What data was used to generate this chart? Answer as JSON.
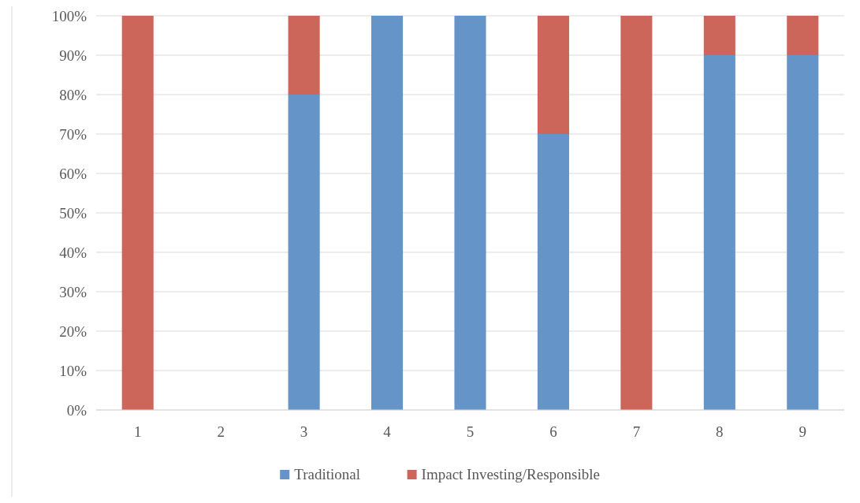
{
  "chart_data": {
    "type": "bar",
    "stacked": true,
    "categories": [
      "1",
      "2",
      "3",
      "4",
      "5",
      "6",
      "7",
      "8",
      "9"
    ],
    "series": [
      {
        "name": "Traditional",
        "color": "#6594c8",
        "values": [
          0,
          0,
          80,
          100,
          100,
          70,
          0,
          90,
          90
        ]
      },
      {
        "name": "Impact Investing/Responsible",
        "color": "#cd665a",
        "values": [
          100,
          0,
          20,
          0,
          0,
          30,
          100,
          10,
          10
        ]
      }
    ],
    "ylim": [
      0,
      100
    ],
    "yticks": [
      {
        "value": 0,
        "label": "0%"
      },
      {
        "value": 10,
        "label": "10%"
      },
      {
        "value": 20,
        "label": "20%"
      },
      {
        "value": 30,
        "label": "30%"
      },
      {
        "value": 40,
        "label": "40%"
      },
      {
        "value": 50,
        "label": "50%"
      },
      {
        "value": 60,
        "label": "60%"
      },
      {
        "value": 70,
        "label": "70%"
      },
      {
        "value": 80,
        "label": "80%"
      },
      {
        "value": 90,
        "label": "90%"
      },
      {
        "value": 100,
        "label": "100%"
      }
    ],
    "grid": "y",
    "legend": "bottom"
  }
}
